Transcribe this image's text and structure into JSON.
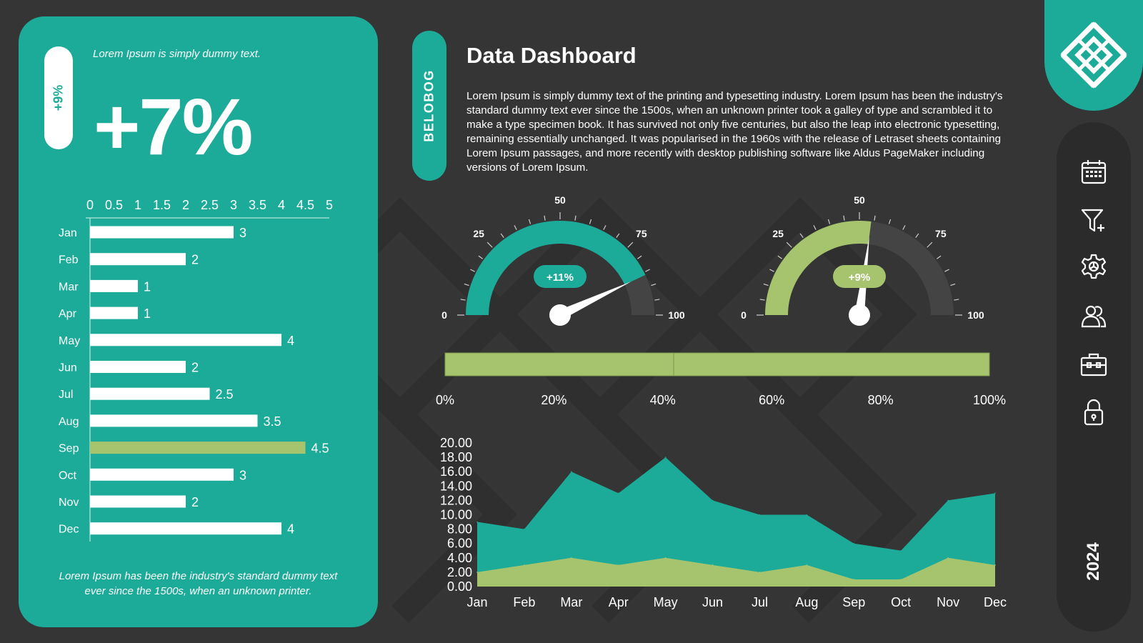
{
  "left_panel": {
    "pill_value": "+9%",
    "tagline": "Lorem Ipsum is simply dummy text.",
    "big_value": "+7%",
    "footer": "Lorem Ipsum has been the industry's standard dummy text ever since the 1500s, when an unknown printer."
  },
  "header": {
    "brand": "BELOBOG",
    "title": "Data Dashboard",
    "description": "Lorem Ipsum is simply dummy text of the printing and typesetting industry. Lorem Ipsum has been the industry's standard dummy text ever since the 1500s, when an unknown printer took a galley of type and scrambled it to make a type specimen book. It has survived not only five centuries, but also the leap into electronic typesetting, remaining essentially unchanged. It was popularised in the 1960s with the release of Letraset sheets containing Lorem Ipsum passages, and more recently with desktop publishing software like Aldus PageMaker including versions of Lorem Ipsum."
  },
  "sidebar": {
    "icons": [
      "calendar-icon",
      "filter-add-icon",
      "settings-icon",
      "users-icon",
      "briefcase-icon",
      "lock-icon"
    ],
    "year": "2024"
  },
  "colors": {
    "teal": "#1cab99",
    "green": "#a6c46d",
    "background": "#353535",
    "track": "#444444"
  },
  "chart_data": [
    {
      "type": "bar",
      "orientation": "horizontal",
      "categories": [
        "Jan",
        "Feb",
        "Mar",
        "Apr",
        "May",
        "Jun",
        "Jul",
        "Aug",
        "Sep",
        "Oct",
        "Nov",
        "Dec"
      ],
      "values": [
        3,
        2,
        1,
        1,
        4,
        2,
        2.5,
        3.5,
        4.5,
        3,
        2,
        4
      ],
      "value_labels": [
        "3",
        "2",
        "1",
        "1",
        "4",
        "2",
        "2.5",
        "3.5",
        "4.5",
        "3",
        "2",
        "4"
      ],
      "highlight": "Sep",
      "xlim": [
        0,
        5
      ],
      "xticks": [
        "0",
        "0.5",
        "1",
        "1.5",
        "2",
        "2.5",
        "3",
        "3.5",
        "4",
        "4.5",
        "5"
      ],
      "grid": false
    },
    {
      "type": "gauge",
      "value": 86,
      "min": 0,
      "max": 100,
      "badge": "+11%",
      "tick_labels": [
        "0",
        "25",
        "50",
        "75",
        "100"
      ],
      "color": "#1cab99"
    },
    {
      "type": "gauge",
      "value": 54,
      "min": 0,
      "max": 100,
      "badge": "+9%",
      "tick_labels": [
        "0",
        "25",
        "50",
        "75",
        "100"
      ],
      "color": "#a6c46d"
    },
    {
      "type": "bar",
      "orientation": "horizontal",
      "stacked": true,
      "segments": [
        42,
        58
      ],
      "xticks": [
        "0%",
        "20%",
        "40%",
        "60%",
        "80%",
        "100%"
      ],
      "xlim": [
        0,
        100
      ]
    },
    {
      "type": "area",
      "categories": [
        "Jan",
        "Feb",
        "Mar",
        "Apr",
        "May",
        "Jun",
        "Jul",
        "Aug",
        "Sep",
        "Oct",
        "Nov",
        "Dec"
      ],
      "series": [
        {
          "values": [
            9,
            8,
            16,
            13,
            18,
            12,
            10,
            10,
            6,
            5,
            12,
            13
          ],
          "color": "#1cab99"
        },
        {
          "values": [
            2,
            3,
            4,
            3,
            4,
            3,
            2,
            3,
            1,
            1,
            4,
            3
          ],
          "color": "#a6c46d"
        }
      ],
      "ylim": [
        0,
        20
      ],
      "yticks": [
        "0.00",
        "2.00",
        "4.00",
        "6.00",
        "8.00",
        "10.00",
        "12.00",
        "14.00",
        "16.00",
        "18.00",
        "20.00"
      ],
      "grid": false
    }
  ]
}
